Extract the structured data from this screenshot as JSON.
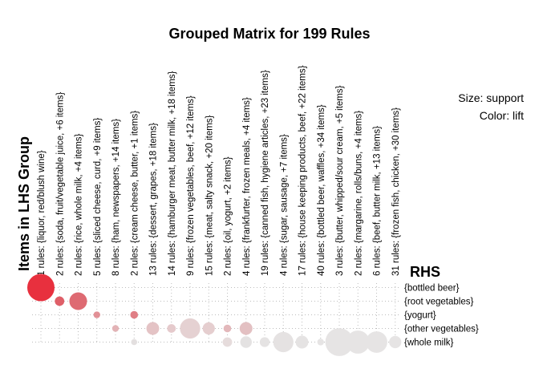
{
  "chart_data": {
    "type": "grouped-matrix",
    "title": "Grouped Matrix for 199 Rules",
    "xlabel": "Items in LHS Group",
    "ylabel": "RHS",
    "legend": {
      "size_label": "Size: support",
      "color_label": "Color: lift"
    },
    "lhs_groups": [
      "1 rules: {liquor, red/blush wine}",
      "2 rules: {soda, fruit/vegetable juice, +6 items}",
      "2 rules: {rice, whole milk, +4 items}",
      "5 rules: {sliced cheese, curd, +9 items}",
      "8 rules: {ham, newspapers, +14 items}",
      "2 rules: {cream cheese, butter, +1 items}",
      "13 rules: {dessert, grapes, +18 items}",
      "14 rules: {hamburger meat, butter milk, +18 items}",
      "9 rules: {frozen vegetables, beef, +12 items}",
      "15 rules: {meat, salty snack, +20 items}",
      "2 rules: {oil,  yogurt, +2 items}",
      "4 rules: {frankfurter, frozen meals, +4 items}",
      "19 rules: {canned fish, hygiene articles, +23 items}",
      "4 rules: {sugar, sausage, +7 items}",
      "17 rules: {house keeping products, beef, +22 items}",
      "40 rules: {bottled beer, waffles, +34 items}",
      "3 rules: {butter, whipped/sour cream, +5 items}",
      "2 rules: {margarine, rolls/buns, +4 items}",
      "6 rules: {beef, butter milk, +13 items}",
      "31 rules: {frozen fish, chicken, +30 items}"
    ],
    "rhs_items": [
      "{bottled beer}",
      "{root vegetables}",
      "{yogurt}",
      "{other vegetables}",
      "{whole milk}"
    ],
    "points": [
      {
        "lhs": 0,
        "rhs": 0,
        "support": 1.0,
        "lift": 11.2,
        "color": "#e8303e"
      },
      {
        "lhs": 1,
        "rhs": 1,
        "support": 0.12,
        "lift": 6.8,
        "color": "#df5f68"
      },
      {
        "lhs": 2,
        "rhs": 1,
        "support": 0.42,
        "lift": 6.5,
        "color": "#de6a72"
      },
      {
        "lhs": 3,
        "rhs": 2,
        "support": 0.06,
        "lift": 5.0,
        "color": "#e29096"
      },
      {
        "lhs": 4,
        "rhs": 3,
        "support": 0.06,
        "lift": 3.5,
        "color": "#e3b3b6"
      },
      {
        "lhs": 5,
        "rhs": 2,
        "support": 0.08,
        "lift": 5.2,
        "color": "#e07e85"
      },
      {
        "lhs": 5,
        "rhs": 4,
        "support": 0.05,
        "lift": 2.0,
        "color": "#e3dfdf"
      },
      {
        "lhs": 6,
        "rhs": 3,
        "support": 0.22,
        "lift": 3.2,
        "color": "#e4c3c5"
      },
      {
        "lhs": 7,
        "rhs": 3,
        "support": 0.1,
        "lift": 3.0,
        "color": "#e5cacc"
      },
      {
        "lhs": 8,
        "rhs": 3,
        "support": 0.55,
        "lift": 2.8,
        "color": "#e5d1d2"
      },
      {
        "lhs": 9,
        "rhs": 3,
        "support": 0.2,
        "lift": 2.8,
        "color": "#e5cecf"
      },
      {
        "lhs": 10,
        "rhs": 3,
        "support": 0.08,
        "lift": 3.4,
        "color": "#e3b8bb"
      },
      {
        "lhs": 10,
        "rhs": 4,
        "support": 0.12,
        "lift": 2.2,
        "color": "#e6dcdc"
      },
      {
        "lhs": 11,
        "rhs": 3,
        "support": 0.22,
        "lift": 3.3,
        "color": "#e3c0c2"
      },
      {
        "lhs": 11,
        "rhs": 4,
        "support": 0.18,
        "lift": 1.9,
        "color": "#e4e2e2"
      },
      {
        "lhs": 12,
        "rhs": 4,
        "support": 0.13,
        "lift": 1.8,
        "color": "#e5e3e3"
      },
      {
        "lhs": 13,
        "rhs": 4,
        "support": 0.55,
        "lift": 1.8,
        "color": "#e5e2e2"
      },
      {
        "lhs": 14,
        "rhs": 4,
        "support": 0.22,
        "lift": 1.8,
        "color": "#e5e3e3"
      },
      {
        "lhs": 15,
        "rhs": 4,
        "support": 0.06,
        "lift": 1.8,
        "color": "#e6e4e4"
      },
      {
        "lhs": 16,
        "rhs": 4,
        "support": 1.05,
        "lift": 1.8,
        "color": "#e6e4e4"
      },
      {
        "lhs": 17,
        "rhs": 4,
        "support": 0.72,
        "lift": 1.8,
        "color": "#e6e4e4"
      },
      {
        "lhs": 18,
        "rhs": 4,
        "support": 0.62,
        "lift": 1.8,
        "color": "#e6e4e4"
      },
      {
        "lhs": 19,
        "rhs": 4,
        "support": 0.2,
        "lift": 1.8,
        "color": "#e6e4e4"
      }
    ],
    "grid": true
  }
}
